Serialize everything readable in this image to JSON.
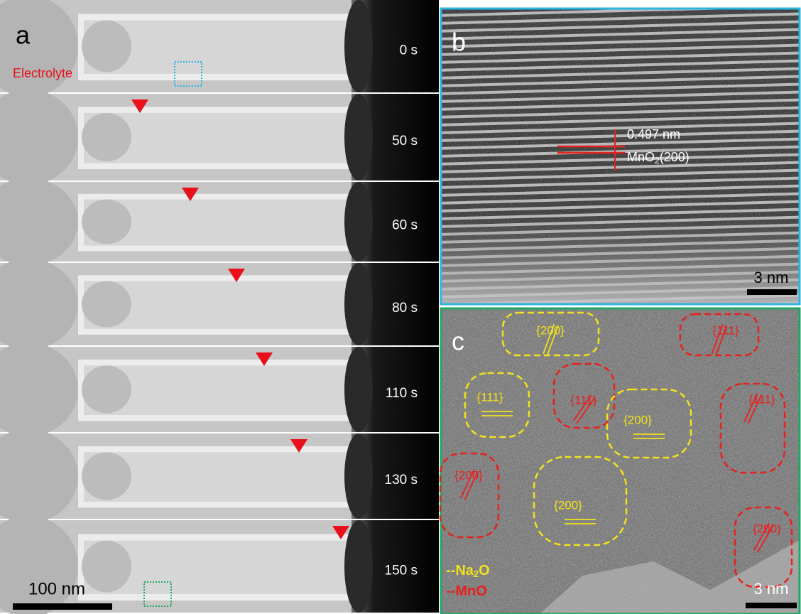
{
  "panel_a": {
    "label": "a",
    "electrolyte": "Electrolyte",
    "frames": [
      "0 s",
      "50 s",
      "60 s",
      "80 s",
      "110 s",
      "130 s",
      "150 s"
    ],
    "scale_bar": "100 nm"
  },
  "panel_b": {
    "label": "b",
    "spacing": "0.497 nm",
    "plane": {
      "main": "MnO",
      "sub": "2",
      "rest": "(200)"
    },
    "scale_bar": "3 nm"
  },
  "panel_c": {
    "label": "c",
    "regions": [
      {
        "label": "{200}",
        "color": "#f2e21c"
      },
      {
        "label": "{111}",
        "color": "#e8201e"
      },
      {
        "label": "{111}",
        "color": "#f2e21c"
      },
      {
        "label": "{111}",
        "color": "#e8201e"
      },
      {
        "label": "{200}",
        "color": "#f2e21c"
      },
      {
        "label": "{111}",
        "color": "#e8201e"
      },
      {
        "label": "{200}",
        "color": "#e8201e"
      },
      {
        "label": "{200}",
        "color": "#f2e21c"
      },
      {
        "label": "{200}",
        "color": "#e8201e"
      }
    ],
    "legend": [
      {
        "main": "--Na",
        "sub": "2",
        "rest": "O",
        "color": "#f2e21c"
      },
      {
        "main": "--MnO",
        "sub": "",
        "rest": "",
        "color": "#e8201e"
      }
    ],
    "scale_bar": "3 nm"
  }
}
